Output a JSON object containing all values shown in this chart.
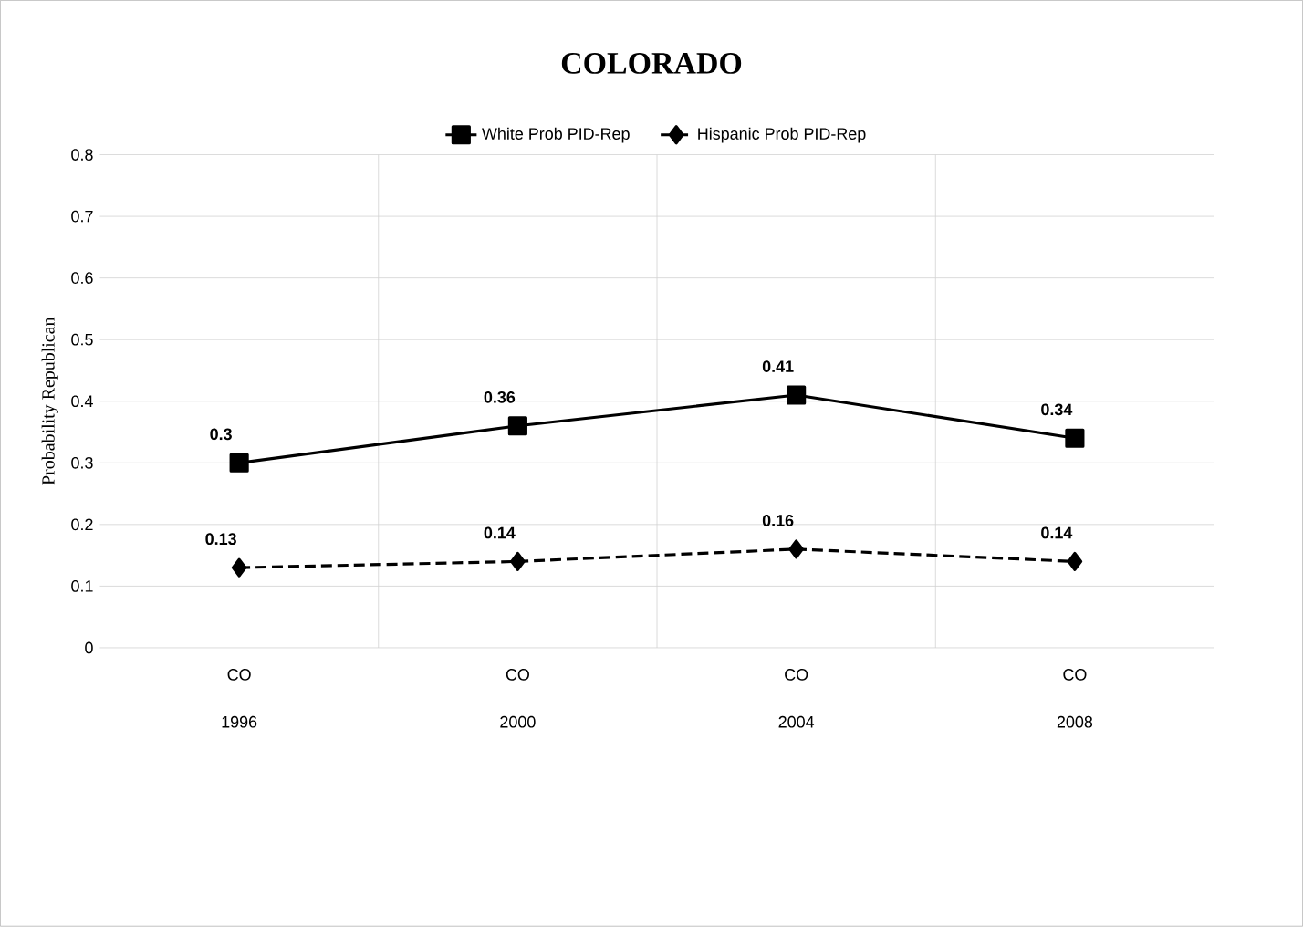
{
  "chart_data": {
    "type": "line",
    "title": "COLORADO",
    "ylabel": "Probability Republican",
    "categories": [
      "CO 1996",
      "CO 2000",
      "CO 2004",
      "CO 2008"
    ],
    "series": [
      {
        "name": "White Prob  PID-Rep",
        "color": "#000000",
        "values": [
          0.3,
          0.36,
          0.41,
          0.34
        ],
        "marker": "square",
        "line_style": "solid"
      },
      {
        "name": "Hispanic Prob PID-Rep",
        "color": "#000000",
        "values": [
          0.13,
          0.14,
          0.16,
          0.14
        ],
        "marker": "diamond",
        "line_style": "dashed"
      }
    ],
    "ylim": [
      0,
      0.8
    ],
    "yticks": [
      0,
      0.1,
      0.2,
      0.3,
      0.4,
      0.5,
      0.6,
      0.7,
      0.8
    ],
    "grid": true,
    "legend": "top",
    "data_labels": true
  }
}
